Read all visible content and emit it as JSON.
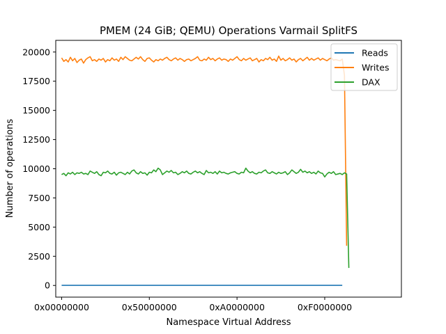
{
  "chart_data": {
    "type": "line",
    "title": "PMEM (24 GiB; QEMU) Operations Varmail SplitFS",
    "xlabel": "Namespace Virtual Address",
    "ylabel": "Number of operations",
    "xlim": [
      -90000000,
      5200000000
    ],
    "ylim": [
      -1000,
      21000
    ],
    "x_ticks": [
      {
        "value": 0,
        "label": "0x00000000"
      },
      {
        "value": 1342177280,
        "label": "0x50000000"
      },
      {
        "value": 2684354560,
        "label": "0xA0000000"
      },
      {
        "value": 4026531840,
        "label": "0xF0000000"
      }
    ],
    "y_ticks": [
      0,
      2500,
      5000,
      7500,
      10000,
      12500,
      15000,
      17500,
      20000
    ],
    "y_tick_labels": [
      "0",
      "2500",
      "5000",
      "7500",
      "10000",
      "12500",
      "15000",
      "17500",
      "20000"
    ],
    "grid": false,
    "legend_position": "top-right",
    "x_start": 0,
    "x_step": 33554432,
    "series": [
      {
        "name": "Reads",
        "color": "#1f77b4",
        "values": [
          10,
          12,
          8,
          11,
          9,
          10,
          13,
          10,
          9,
          11,
          10,
          12,
          9,
          10,
          11,
          8,
          10,
          12,
          11,
          9,
          10,
          10,
          11,
          9,
          12,
          10,
          8,
          11,
          10,
          9,
          12,
          10,
          11,
          9,
          10,
          12,
          8,
          10,
          11,
          9,
          10,
          12,
          11,
          9,
          10,
          8,
          11,
          10,
          12,
          9,
          10,
          11,
          10,
          9,
          12,
          10,
          8,
          11,
          10,
          12,
          9,
          10,
          11,
          10,
          9,
          12,
          10,
          8,
          11,
          10,
          9,
          12,
          10,
          11,
          9,
          10,
          12,
          8,
          10,
          11,
          9,
          10,
          12,
          11,
          9,
          10,
          8,
          11,
          10,
          12,
          9,
          10,
          11,
          10,
          9,
          12,
          10,
          8,
          11,
          10,
          9,
          12,
          10,
          11,
          9,
          10,
          12,
          8,
          10,
          11,
          9,
          10,
          12,
          11,
          9,
          10,
          8,
          11,
          10,
          12,
          9,
          10,
          11,
          10,
          9,
          12,
          10,
          8,
          10
        ]
      },
      {
        "name": "Writes",
        "color": "#ff7f0e",
        "values": [
          19500,
          19200,
          19350,
          19150,
          19550,
          19250,
          19450,
          19100,
          19300,
          19400,
          19050,
          19350,
          19500,
          19600,
          19250,
          19350,
          19200,
          19400,
          19300,
          19450,
          19150,
          19350,
          19250,
          19500,
          19300,
          19400,
          19200,
          19550,
          19350,
          19600,
          19450,
          19300,
          19250,
          19400,
          19550,
          19400,
          19600,
          19350,
          19200,
          19450,
          19500,
          19300,
          19150,
          19350,
          19250,
          19400,
          19300,
          19450,
          19550,
          19350,
          19250,
          19400,
          19500,
          19300,
          19450,
          19350,
          19200,
          19350,
          19400,
          19250,
          19350,
          19450,
          19600,
          19300,
          19250,
          19400,
          19300,
          19550,
          19350,
          19450,
          19250,
          19400,
          19500,
          19300,
          19400,
          19350,
          19200,
          19400,
          19300,
          19450,
          19600,
          19350,
          19250,
          19450,
          19300,
          19400,
          19500,
          19250,
          19350,
          19450,
          19150,
          19350,
          19250,
          19450,
          19350,
          19550,
          19300,
          19400,
          19200,
          19650,
          19300,
          19450,
          19250,
          19350,
          19500,
          19300,
          19400,
          19150,
          19350,
          19450,
          19250,
          19400,
          19550,
          19300,
          19450,
          19300,
          19400,
          19500,
          19300,
          19450,
          19350,
          19250,
          19400,
          19500,
          19300,
          19350,
          19300,
          19250,
          19400,
          18000,
          3400
        ]
      },
      {
        "name": "DAX",
        "color": "#2ca02c",
        "values": [
          9500,
          9600,
          9400,
          9650,
          9550,
          9700,
          9500,
          9650,
          9600,
          9700,
          9550,
          9600,
          9500,
          9800,
          9700,
          9600,
          9750,
          9500,
          9400,
          9700,
          9650,
          9800,
          9600,
          9550,
          9700,
          9450,
          9650,
          9700,
          9600,
          9500,
          9700,
          9550,
          9800,
          9900,
          9650,
          9550,
          9750,
          9600,
          9650,
          9450,
          9700,
          9650,
          9900,
          9750,
          10050,
          9900,
          9500,
          9650,
          9800,
          9700,
          9850,
          9650,
          9700,
          9500,
          9600,
          9750,
          9650,
          9800,
          9600,
          9550,
          9700,
          9800,
          9650,
          9750,
          9600,
          9500,
          9850,
          9650,
          9700,
          9600,
          9750,
          9550,
          9800,
          9650,
          9700,
          9600,
          9550,
          9650,
          9700,
          9750,
          9600,
          9550,
          9700,
          9650,
          10050,
          9800,
          9650,
          9750,
          9600,
          9550,
          9700,
          9650,
          9800,
          9900,
          9650,
          9600,
          9750,
          9650,
          9550,
          9700,
          9600,
          9650,
          9750,
          9500,
          9650,
          9900,
          9750,
          9600,
          9700,
          9950,
          9700,
          9800,
          9650,
          9750,
          9600,
          9700,
          9550,
          9800,
          9650,
          9600,
          9300,
          9550,
          9700,
          9600,
          9750,
          9500,
          9550,
          9600,
          9500,
          9650,
          9550,
          1500
        ]
      }
    ]
  }
}
